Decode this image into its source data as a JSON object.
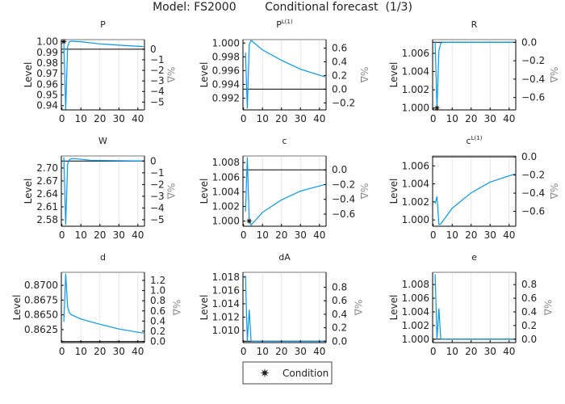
{
  "title": "Model: FS2000        Conditional forecast  (1/3)",
  "colors": {
    "series": "#009af9",
    "steady_state": "#000000",
    "grid": "#e6e6e6",
    "frame": "#000000",
    "top_frame": "#bbbbbb",
    "right_label": "#888888"
  },
  "legend": {
    "label": "Condition",
    "marker": "star-icon",
    "placement": "bottom-center"
  },
  "chart_data": [
    {
      "type": "line",
      "title": "P",
      "title_sup": "",
      "ylabel": "Level",
      "y2label": "%Δ",
      "xlim": [
        -0.3,
        43.5
      ],
      "xticks": [
        0,
        10,
        20,
        30,
        40
      ],
      "ylim": [
        0.936,
        1.002
      ],
      "yticks": [
        0.94,
        0.95,
        0.96,
        0.97,
        0.98,
        0.99,
        1.0
      ],
      "ytick_labels": [
        "0.94",
        "0.95",
        "0.96",
        "0.97",
        "0.98",
        "0.99",
        "1.00"
      ],
      "steady_state": 0.993,
      "y2ticks": [
        0,
        -1,
        -2,
        -3,
        -4,
        -5
      ],
      "y2tick_labels": [
        "0",
        "−1",
        "−2",
        "−3",
        "−4",
        "−5"
      ],
      "series": [
        [
          1,
          0.998
        ],
        [
          2,
          0.936
        ],
        [
          3,
          0.996
        ],
        [
          4,
          1.0
        ],
        [
          5,
          1.0005
        ],
        [
          10,
          1.0
        ],
        [
          20,
          0.998
        ],
        [
          30,
          0.9968
        ],
        [
          43,
          0.9955
        ]
      ],
      "conditions": [
        [
          1,
          1.0
        ]
      ]
    },
    {
      "type": "line",
      "title": "P",
      "title_sup": "L(1)",
      "ylabel": "Level",
      "y2label": "%Δ",
      "xlim": [
        -0.3,
        43.5
      ],
      "xticks": [
        0,
        10,
        20,
        30,
        40
      ],
      "ylim": [
        0.9903,
        1.0005
      ],
      "yticks": [
        0.992,
        0.994,
        0.996,
        0.998,
        1.0
      ],
      "ytick_labels": [
        "0.992",
        "0.994",
        "0.996",
        "0.998",
        "1.000"
      ],
      "steady_state": 0.9933,
      "y2ticks": [
        -0.2,
        0,
        0.2,
        0.4,
        0.6
      ],
      "y2tick_labels": [
        "−0.2",
        "0.0",
        "0.2",
        "0.4",
        "0.6"
      ],
      "series": [
        [
          1,
          0.9986
        ],
        [
          2,
          0.9905
        ],
        [
          3,
          0.9998
        ],
        [
          4,
          1.0004
        ],
        [
          10,
          0.999
        ],
        [
          20,
          0.9975
        ],
        [
          30,
          0.9962
        ],
        [
          43,
          0.9951
        ]
      ],
      "conditions": []
    },
    {
      "type": "line",
      "title": "R",
      "title_sup": "",
      "ylabel": "Level",
      "y2label": "%Δ",
      "xlim": [
        -0.3,
        43.5
      ],
      "xticks": [
        0,
        10,
        20,
        30,
        40
      ],
      "ylim": [
        0.9998,
        1.0075
      ],
      "yticks": [
        1.0,
        1.002,
        1.004,
        1.006
      ],
      "ytick_labels": [
        "1.000",
        "1.002",
        "1.004",
        "1.006"
      ],
      "steady_state": 1.0072,
      "y2ticks": [
        0,
        -0.2,
        -0.4,
        -0.6
      ],
      "y2tick_labels": [
        "0.0",
        "−0.2",
        "−0.4",
        "−0.6"
      ],
      "series": [
        [
          1,
          1.0073
        ],
        [
          2,
          0.9999
        ],
        [
          3,
          1.0063
        ],
        [
          4,
          1.0071
        ],
        [
          5,
          1.0072
        ],
        [
          43,
          1.0072
        ]
      ],
      "conditions": [
        [
          2,
          1.0
        ]
      ]
    },
    {
      "type": "line",
      "title": "W",
      "title_sup": "",
      "ylabel": "Level",
      "y2label": "%Δ",
      "xlim": [
        -0.3,
        43.5
      ],
      "xticks": [
        0,
        10,
        20,
        30,
        40
      ],
      "ylim": [
        2.565,
        2.728
      ],
      "yticks": [
        2.58,
        2.61,
        2.64,
        2.67,
        2.7
      ],
      "ytick_labels": [
        "2.58",
        "2.61",
        "2.64",
        "2.67",
        "2.70"
      ],
      "steady_state": 2.716,
      "y2ticks": [
        0,
        -1,
        -2,
        -3,
        -4,
        -5
      ],
      "y2tick_labels": [
        "0",
        "−1",
        "−2",
        "−3",
        "−4",
        "−5"
      ],
      "series": [
        [
          1,
          2.725
        ],
        [
          2,
          2.568
        ],
        [
          3,
          2.71
        ],
        [
          4,
          2.72
        ],
        [
          6,
          2.722
        ],
        [
          15,
          2.718
        ],
        [
          43,
          2.716
        ]
      ],
      "conditions": []
    },
    {
      "type": "line",
      "title": "c",
      "title_sup": "",
      "ylabel": "Level",
      "y2label": "%Δ",
      "xlim": [
        -0.3,
        43.5
      ],
      "xticks": [
        0,
        10,
        20,
        30,
        40
      ],
      "ylim": [
        0.9993,
        1.0089
      ],
      "yticks": [
        1.0,
        1.002,
        1.004,
        1.006,
        1.008
      ],
      "ytick_labels": [
        "1.000",
        "1.002",
        "1.004",
        "1.006",
        "1.008"
      ],
      "steady_state": 1.007,
      "y2ticks": [
        0,
        -0.2,
        -0.4,
        -0.6
      ],
      "y2tick_labels": [
        "0.0",
        "−0.2",
        "−0.4",
        "−0.6"
      ],
      "series": [
        [
          1,
          1.0013
        ],
        [
          2,
          1.0087
        ],
        [
          3,
          1.0
        ],
        [
          4,
          0.99945
        ],
        [
          10,
          1.0012
        ],
        [
          20,
          1.0029
        ],
        [
          30,
          1.0041
        ],
        [
          43,
          1.005
        ]
      ],
      "conditions": [
        [
          3,
          1.0
        ]
      ]
    },
    {
      "type": "line",
      "title": "c",
      "title_sup": "L(1)",
      "ylabel": "Level",
      "y2label": "%Δ",
      "xlim": [
        -0.3,
        43.5
      ],
      "xticks": [
        0,
        10,
        20,
        30,
        40
      ],
      "ylim": [
        0.9993,
        1.0071
      ],
      "yticks": [
        1.0,
        1.002,
        1.004,
        1.006
      ],
      "ytick_labels": [
        "1.000",
        "1.002",
        "1.004",
        "1.006"
      ],
      "steady_state": 1.007,
      "y2ticks": [
        0,
        -0.2,
        -0.4,
        -0.6
      ],
      "y2tick_labels": [
        "0.0",
        "−0.2",
        "−0.4",
        "−0.6"
      ],
      "series": [
        [
          1,
          1.0018
        ],
        [
          2,
          1.0026
        ],
        [
          3,
          0.9995
        ],
        [
          4,
          0.99955
        ],
        [
          10,
          1.0013
        ],
        [
          20,
          1.003
        ],
        [
          30,
          1.0042
        ],
        [
          43,
          1.0051
        ]
      ],
      "conditions": []
    },
    {
      "type": "line",
      "title": "d",
      "title_sup": "",
      "ylabel": "Level",
      "y2label": "%Δ",
      "xlim": [
        -0.3,
        43.5
      ],
      "xticks": [
        0,
        10,
        20,
        30,
        40
      ],
      "ylim": [
        0.8603,
        0.8722
      ],
      "yticks": [
        0.8625,
        0.865,
        0.8675,
        0.87
      ],
      "ytick_labels": [
        "0.8625",
        "0.8650",
        "0.8675",
        "0.8700"
      ],
      "steady_state": 0.8605,
      "y2ticks": [
        0,
        0.2,
        0.4,
        0.6,
        0.8,
        1.0,
        1.2
      ],
      "y2tick_labels": [
        "0.0",
        "0.2",
        "0.4",
        "0.6",
        "0.8",
        "1.0",
        "1.2"
      ],
      "series": [
        [
          1,
          0.8638
        ],
        [
          2,
          0.872
        ],
        [
          3,
          0.8663
        ],
        [
          4,
          0.8653
        ],
        [
          5,
          0.865
        ],
        [
          10,
          0.8643
        ],
        [
          20,
          0.8634
        ],
        [
          30,
          0.8626
        ],
        [
          43,
          0.8619
        ]
      ],
      "conditions": []
    },
    {
      "type": "line",
      "title": "dA",
      "title_sup": "",
      "ylabel": "Level",
      "y2label": "%Δ",
      "xlim": [
        -0.3,
        43.5
      ],
      "xticks": [
        0,
        10,
        20,
        30,
        40
      ],
      "ylim": [
        1.0082,
        1.0187
      ],
      "yticks": [
        1.01,
        1.012,
        1.014,
        1.016,
        1.018
      ],
      "ytick_labels": [
        "1.010",
        "1.012",
        "1.014",
        "1.016",
        "1.018"
      ],
      "steady_state": 1.0084,
      "y2ticks": [
        0,
        0.2,
        0.4,
        0.6,
        0.8
      ],
      "y2tick_labels": [
        "0.0",
        "0.2",
        "0.4",
        "0.6",
        "0.8"
      ],
      "series": [
        [
          1,
          1.0182
        ],
        [
          2,
          1.0084
        ],
        [
          3,
          1.0131
        ],
        [
          4,
          1.0084
        ],
        [
          43,
          1.0084
        ]
      ],
      "conditions": []
    },
    {
      "type": "line",
      "title": "e",
      "title_sup": "",
      "ylabel": "Level",
      "y2label": "%Δ",
      "xlim": [
        -0.3,
        43.5
      ],
      "xticks": [
        0,
        10,
        20,
        30,
        40
      ],
      "ylim": [
        0.9995,
        1.0098
      ],
      "yticks": [
        1.0,
        1.002,
        1.004,
        1.006,
        1.008
      ],
      "ytick_labels": [
        "1.000",
        "1.002",
        "1.004",
        "1.006",
        "1.008"
      ],
      "steady_state": 1.0,
      "y2ticks": [
        0,
        0.2,
        0.4,
        0.6,
        0.8
      ],
      "y2tick_labels": [
        "0.0",
        "0.2",
        "0.4",
        "0.6",
        "0.8"
      ],
      "series": [
        [
          1,
          1.0095
        ],
        [
          2,
          1.0
        ],
        [
          3,
          1.0045
        ],
        [
          4,
          1.0
        ],
        [
          43,
          1.0
        ]
      ],
      "conditions": []
    }
  ]
}
